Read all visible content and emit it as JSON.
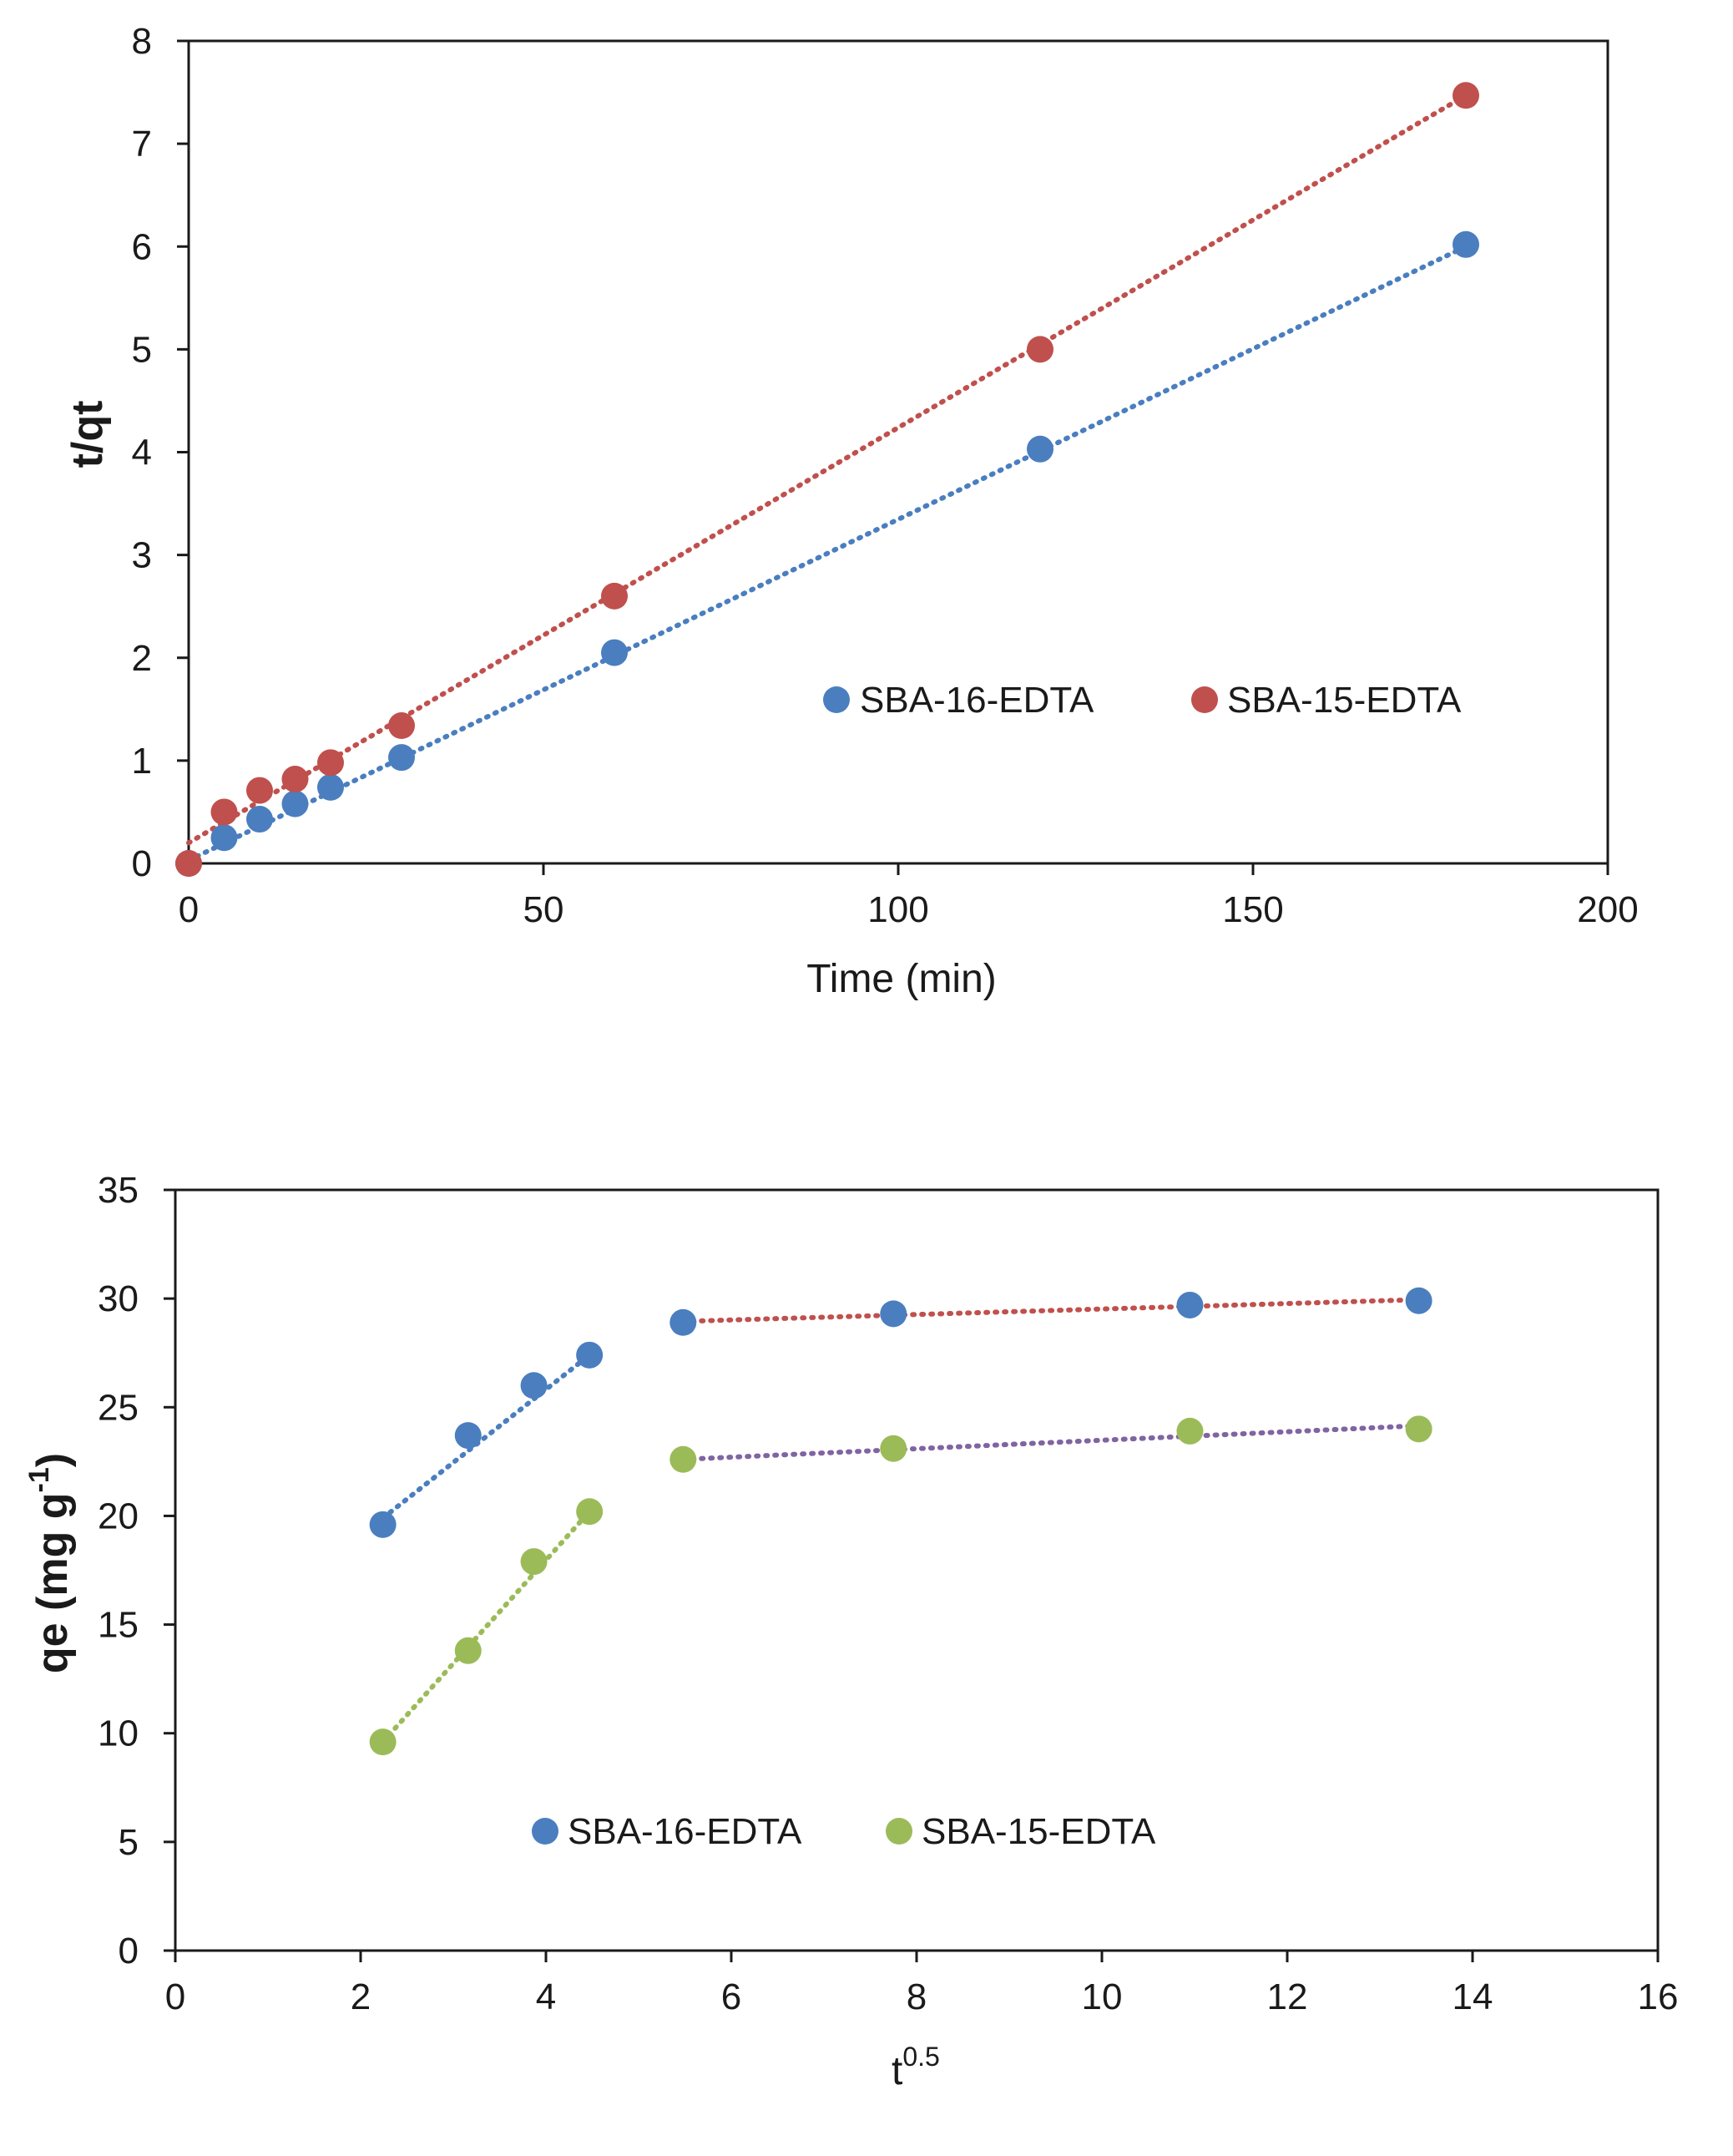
{
  "chart_data": [
    {
      "type": "scatter",
      "title": "",
      "xlabel": "Time (min)",
      "ylabel": "t/qt",
      "xlim": [
        0,
        200
      ],
      "ylim": [
        0,
        8
      ],
      "xticks": [
        0,
        50,
        100,
        150,
        200
      ],
      "yticks": [
        0,
        1,
        2,
        3,
        4,
        5,
        6,
        7,
        8
      ],
      "legend_position": "center-right",
      "series": [
        {
          "name": "SBA-16-EDTA",
          "color": "#4a7ebf",
          "trendline_color": "#4a7ebf",
          "x": [
            0,
            5,
            10,
            15,
            20,
            30,
            60,
            120,
            180
          ],
          "y": [
            0,
            0.25,
            0.43,
            0.58,
            0.74,
            1.03,
            2.05,
            4.03,
            6.02
          ],
          "trendlines": [
            {
              "x": [
                0,
                180
              ],
              "y": [
                0.03,
                6.0
              ]
            }
          ]
        },
        {
          "name": "SBA-15-EDTA",
          "color": "#c0504d",
          "trendline_color": "#c0504d",
          "x": [
            0,
            5,
            10,
            15,
            20,
            30,
            60,
            120,
            180
          ],
          "y": [
            0,
            0.5,
            0.71,
            0.82,
            0.98,
            1.34,
            2.6,
            5.0,
            7.47
          ],
          "trendlines": [
            {
              "x": [
                0,
                180
              ],
              "y": [
                0.2,
                7.47
              ]
            }
          ]
        }
      ]
    },
    {
      "type": "scatter",
      "title": "",
      "xlabel": "t",
      "xlabel_sup": "0.5",
      "ylabel": "qe (mg g",
      "ylabel_sup": "-1",
      "ylabel_tail": ")",
      "xlim": [
        0,
        16
      ],
      "ylim": [
        0,
        35
      ],
      "xticks": [
        0,
        2,
        4,
        6,
        8,
        10,
        12,
        14,
        16
      ],
      "yticks": [
        0,
        5,
        10,
        15,
        20,
        25,
        30,
        35
      ],
      "legend_position": "bottom-center",
      "series": [
        {
          "name": "SBA-16-EDTA",
          "color": "#4a7ebf",
          "x": [
            2.24,
            3.16,
            3.87,
            4.47,
            5.48,
            7.75,
            10.95,
            13.42
          ],
          "y": [
            19.6,
            23.7,
            26.0,
            27.4,
            28.9,
            29.3,
            29.7,
            29.9
          ],
          "trendlines": [
            {
              "x": [
                2.24,
                4.47
              ],
              "y": [
                19.9,
                27.4
              ],
              "color": "#4a7ebf"
            },
            {
              "x": [
                5.48,
                13.42
              ],
              "y": [
                28.95,
                29.95
              ],
              "color": "#c0504d"
            }
          ]
        },
        {
          "name": "SBA-15-EDTA",
          "color": "#9bbb59",
          "x": [
            2.24,
            3.16,
            3.87,
            4.47,
            5.48,
            7.75,
            10.95,
            13.42
          ],
          "y": [
            9.6,
            13.8,
            17.9,
            20.2,
            22.6,
            23.1,
            23.9,
            24.0
          ],
          "trendlines": [
            {
              "x": [
                2.24,
                4.47
              ],
              "y": [
                9.6,
                20.2
              ],
              "color": "#9bbb59"
            },
            {
              "x": [
                5.48,
                13.42
              ],
              "y": [
                22.6,
                24.15
              ],
              "color": "#8064a2"
            }
          ]
        }
      ]
    }
  ]
}
